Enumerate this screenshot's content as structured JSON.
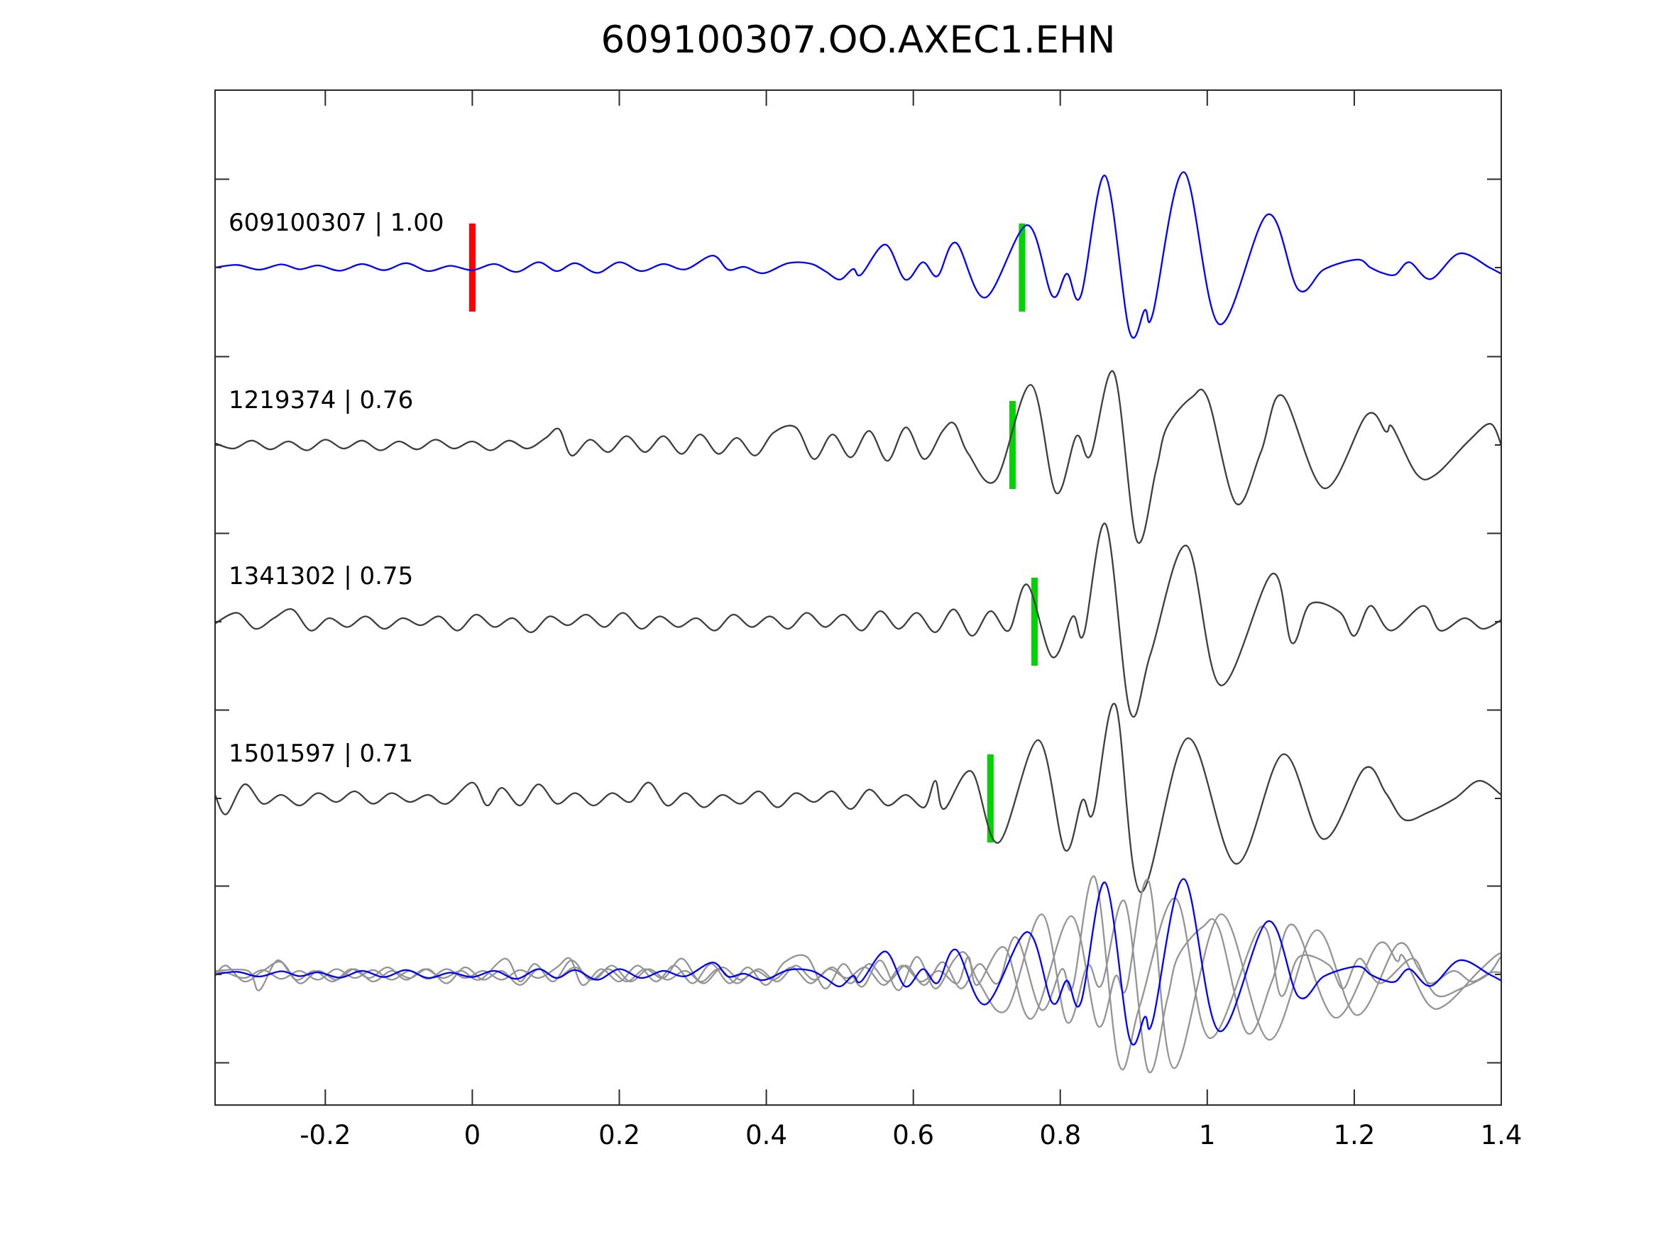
{
  "title": "609100307.OO.AXEC1.EHN",
  "colors": {
    "reference_trace": "#0000ff",
    "candidate_trace": "#3e3e3e",
    "overlay_gray": "#949494",
    "pick_marker_green": "#00d400",
    "pick_marker_red": "#ff0000",
    "spine": "#2b2b2b",
    "background": "#ffffff",
    "text": "#000000"
  },
  "chart_data": {
    "type": "line",
    "title": "609100307.OO.AXEC1.EHN",
    "xlabel": "",
    "ylabel": "",
    "x_range": [
      -0.35,
      1.4
    ],
    "x_ticks": [
      -0.2,
      0,
      0.2,
      0.4,
      0.6,
      0.8,
      1,
      1.2,
      1.4
    ],
    "x_tick_labels": [
      "-0.2",
      "0",
      "0.2",
      "0.4",
      "0.6",
      "0.8",
      "1",
      "1.2",
      "1.4"
    ],
    "grid": false,
    "legend": "none",
    "amplitude_units": "row-spacing normalized (1.0 = distance between stacked traces)",
    "traces": [
      {
        "id": "609100307",
        "correlation": "1.00",
        "label": "609100307 | 1.00",
        "color": "#0000ff",
        "row": 0,
        "markers": [
          {
            "x": 0.0,
            "color": "#ff0000",
            "kind": "reference-pick"
          },
          {
            "x": 0.748,
            "color": "#00d400",
            "kind": "pick"
          }
        ],
        "points": [
          [
            -0.35,
            0
          ],
          [
            -0.32,
            0.015
          ],
          [
            -0.29,
            -0.012
          ],
          [
            -0.26,
            0.018
          ],
          [
            -0.235,
            -0.01
          ],
          [
            -0.21,
            0.012
          ],
          [
            -0.18,
            -0.018
          ],
          [
            -0.15,
            0.02
          ],
          [
            -0.12,
            -0.015
          ],
          [
            -0.09,
            0.025
          ],
          [
            -0.06,
            -0.02
          ],
          [
            -0.03,
            0.01
          ],
          [
            0,
            -0.015
          ],
          [
            0.03,
            0.02
          ],
          [
            0.06,
            -0.025
          ],
          [
            0.09,
            0.03
          ],
          [
            0.115,
            -0.02
          ],
          [
            0.14,
            0.025
          ],
          [
            0.17,
            -0.03
          ],
          [
            0.2,
            0.03
          ],
          [
            0.23,
            -0.02
          ],
          [
            0.26,
            0.02
          ],
          [
            0.29,
            -0.01
          ],
          [
            0.327,
            0.068
          ],
          [
            0.348,
            -0.012
          ],
          [
            0.37,
            0.004
          ],
          [
            0.396,
            -0.032
          ],
          [
            0.43,
            0.025
          ],
          [
            0.46,
            0.022
          ],
          [
            0.48,
            -0.02
          ],
          [
            0.5,
            -0.068
          ],
          [
            0.518,
            -0.008
          ],
          [
            0.529,
            -0.04
          ],
          [
            0.562,
            0.13
          ],
          [
            0.589,
            -0.068
          ],
          [
            0.613,
            0.03
          ],
          [
            0.633,
            -0.048
          ],
          [
            0.658,
            0.14
          ],
          [
            0.698,
            -0.17
          ],
          [
            0.755,
            0.24
          ],
          [
            0.789,
            -0.16
          ],
          [
            0.809,
            -0.035
          ],
          [
            0.828,
            -0.16
          ],
          [
            0.861,
            0.52
          ],
          [
            0.894,
            -0.36
          ],
          [
            0.915,
            -0.24
          ],
          [
            0.926,
            -0.26
          ],
          [
            0.968,
            0.54
          ],
          [
            1.016,
            -0.32
          ],
          [
            1.082,
            0.3
          ],
          [
            1.124,
            -0.125
          ],
          [
            1.159,
            -0.01
          ],
          [
            1.204,
            0.045
          ],
          [
            1.222,
            0
          ],
          [
            1.238,
            -0.03
          ],
          [
            1.256,
            -0.04
          ],
          [
            1.275,
            0.03
          ],
          [
            1.304,
            -0.065
          ],
          [
            1.343,
            0.08
          ],
          [
            1.384,
            0
          ],
          [
            1.4,
            -0.035
          ]
        ]
      },
      {
        "id": "1219374",
        "correlation": "0.76",
        "label": "1219374 | 0.76",
        "color": "#3e3e3e",
        "row": 1,
        "markers": [
          {
            "x": 0.735,
            "color": "#00d400",
            "kind": "pick"
          }
        ],
        "points": [
          [
            -0.35,
            0.01
          ],
          [
            -0.325,
            -0.02
          ],
          [
            -0.3,
            0.025
          ],
          [
            -0.275,
            -0.025
          ],
          [
            -0.25,
            0.02
          ],
          [
            -0.225,
            -0.03
          ],
          [
            -0.2,
            0.03
          ],
          [
            -0.175,
            -0.02
          ],
          [
            -0.15,
            0.025
          ],
          [
            -0.125,
            -0.03
          ],
          [
            -0.1,
            0.02
          ],
          [
            -0.075,
            -0.025
          ],
          [
            -0.05,
            0.03
          ],
          [
            -0.025,
            -0.02
          ],
          [
            0,
            0.02
          ],
          [
            0.025,
            -0.03
          ],
          [
            0.05,
            0.025
          ],
          [
            0.075,
            -0.02
          ],
          [
            0.1,
            0.04
          ],
          [
            0.118,
            0.09
          ],
          [
            0.135,
            -0.06
          ],
          [
            0.16,
            0.03
          ],
          [
            0.185,
            -0.04
          ],
          [
            0.21,
            0.05
          ],
          [
            0.235,
            -0.04
          ],
          [
            0.26,
            0.05
          ],
          [
            0.285,
            -0.05
          ],
          [
            0.31,
            0.06
          ],
          [
            0.335,
            -0.05
          ],
          [
            0.36,
            0.04
          ],
          [
            0.385,
            -0.06
          ],
          [
            0.41,
            0.07
          ],
          [
            0.44,
            0.1
          ],
          [
            0.465,
            -0.08
          ],
          [
            0.49,
            0.06
          ],
          [
            0.515,
            -0.07
          ],
          [
            0.54,
            0.08
          ],
          [
            0.565,
            -0.09
          ],
          [
            0.59,
            0.1
          ],
          [
            0.615,
            -0.08
          ],
          [
            0.64,
            0.08
          ],
          [
            0.656,
            0.12
          ],
          [
            0.675,
            -0.05
          ],
          [
            0.712,
            -0.2
          ],
          [
            0.76,
            0.34
          ],
          [
            0.794,
            -0.27
          ],
          [
            0.822,
            0.05
          ],
          [
            0.841,
            -0.06
          ],
          [
            0.873,
            0.41
          ],
          [
            0.904,
            -0.54
          ],
          [
            0.93,
            -0.15
          ],
          [
            0.945,
            0.1
          ],
          [
            0.979,
            0.27
          ],
          [
            1.001,
            0.26
          ],
          [
            1.039,
            -0.33
          ],
          [
            1.073,
            -0.04
          ],
          [
            1.102,
            0.28
          ],
          [
            1.159,
            -0.245
          ],
          [
            1.217,
            0.17
          ],
          [
            1.243,
            0.076
          ],
          [
            1.252,
            0.1
          ],
          [
            1.285,
            -0.165
          ],
          [
            1.31,
            -0.17
          ],
          [
            1.355,
            0.02
          ],
          [
            1.385,
            0.12
          ],
          [
            1.4,
            0
          ]
        ]
      },
      {
        "id": "1341302",
        "correlation": "0.75",
        "label": "1341302 | 0.75",
        "color": "#3e3e3e",
        "row": 2,
        "markers": [
          {
            "x": 0.765,
            "color": "#00d400",
            "kind": "pick"
          }
        ],
        "points": [
          [
            -0.35,
            -0.01
          ],
          [
            -0.32,
            0.05
          ],
          [
            -0.295,
            -0.04
          ],
          [
            -0.27,
            0.02
          ],
          [
            -0.245,
            0.07
          ],
          [
            -0.22,
            -0.05
          ],
          [
            -0.195,
            0.02
          ],
          [
            -0.17,
            -0.03
          ],
          [
            -0.145,
            0.03
          ],
          [
            -0.12,
            -0.04
          ],
          [
            -0.095,
            0.02
          ],
          [
            -0.07,
            -0.02
          ],
          [
            -0.045,
            0.03
          ],
          [
            -0.02,
            -0.05
          ],
          [
            0.005,
            0.04
          ],
          [
            0.03,
            -0.03
          ],
          [
            0.055,
            0.02
          ],
          [
            0.08,
            -0.06
          ],
          [
            0.105,
            0.03
          ],
          [
            0.13,
            -0.02
          ],
          [
            0.155,
            0.04
          ],
          [
            0.18,
            -0.03
          ],
          [
            0.205,
            0.05
          ],
          [
            0.23,
            -0.04
          ],
          [
            0.255,
            0.03
          ],
          [
            0.28,
            -0.03
          ],
          [
            0.305,
            0.02
          ],
          [
            0.33,
            -0.05
          ],
          [
            0.355,
            0.04
          ],
          [
            0.38,
            -0.03
          ],
          [
            0.405,
            0.03
          ],
          [
            0.43,
            -0.04
          ],
          [
            0.455,
            0.05
          ],
          [
            0.48,
            -0.03
          ],
          [
            0.505,
            0.04
          ],
          [
            0.53,
            -0.05
          ],
          [
            0.555,
            0.06
          ],
          [
            0.58,
            -0.04
          ],
          [
            0.605,
            0.05
          ],
          [
            0.63,
            -0.06
          ],
          [
            0.655,
            0.07
          ],
          [
            0.68,
            -0.08
          ],
          [
            0.705,
            0.06
          ],
          [
            0.73,
            -0.05
          ],
          [
            0.755,
            0.21
          ],
          [
            0.789,
            -0.2
          ],
          [
            0.817,
            0.03
          ],
          [
            0.832,
            -0.07
          ],
          [
            0.862,
            0.55
          ],
          [
            0.895,
            -0.51
          ],
          [
            0.923,
            -0.18
          ],
          [
            0.972,
            0.43
          ],
          [
            1.018,
            -0.36
          ],
          [
            1.088,
            0.27
          ],
          [
            1.115,
            -0.12
          ],
          [
            1.14,
            0.1
          ],
          [
            1.18,
            0.055
          ],
          [
            1.2,
            -0.08
          ],
          [
            1.222,
            0.09
          ],
          [
            1.25,
            -0.05
          ],
          [
            1.294,
            0.09
          ],
          [
            1.317,
            -0.05
          ],
          [
            1.35,
            0.02
          ],
          [
            1.375,
            -0.04
          ],
          [
            1.4,
            0.01
          ]
        ]
      },
      {
        "id": "1501597",
        "correlation": "0.71",
        "label": "1501597 | 0.71",
        "color": "#3e3e3e",
        "row": 3,
        "markers": [
          {
            "x": 0.705,
            "color": "#00d400",
            "kind": "pick"
          }
        ],
        "points": [
          [
            -0.35,
            0.02
          ],
          [
            -0.335,
            -0.09
          ],
          [
            -0.31,
            0.08
          ],
          [
            -0.285,
            -0.03
          ],
          [
            -0.26,
            0.02
          ],
          [
            -0.235,
            -0.04
          ],
          [
            -0.21,
            0.03
          ],
          [
            -0.185,
            -0.02
          ],
          [
            -0.16,
            0.04
          ],
          [
            -0.135,
            -0.03
          ],
          [
            -0.11,
            0.03
          ],
          [
            -0.085,
            -0.02
          ],
          [
            -0.06,
            0.02
          ],
          [
            -0.035,
            -0.03
          ],
          [
            0,
            0.09
          ],
          [
            0.02,
            -0.04
          ],
          [
            0.04,
            0.06
          ],
          [
            0.065,
            -0.04
          ],
          [
            0.09,
            0.08
          ],
          [
            0.115,
            -0.03
          ],
          [
            0.14,
            0.03
          ],
          [
            0.165,
            -0.04
          ],
          [
            0.19,
            0.03
          ],
          [
            0.215,
            -0.02
          ],
          [
            0.24,
            0.09
          ],
          [
            0.265,
            -0.04
          ],
          [
            0.29,
            0.03
          ],
          [
            0.315,
            -0.05
          ],
          [
            0.34,
            0.02
          ],
          [
            0.365,
            -0.03
          ],
          [
            0.39,
            0.04
          ],
          [
            0.415,
            -0.05
          ],
          [
            0.44,
            0.03
          ],
          [
            0.465,
            -0.02
          ],
          [
            0.49,
            0.04
          ],
          [
            0.515,
            -0.06
          ],
          [
            0.54,
            0.05
          ],
          [
            0.565,
            -0.04
          ],
          [
            0.59,
            0.02
          ],
          [
            0.615,
            -0.05
          ],
          [
            0.63,
            0.1
          ],
          [
            0.642,
            -0.06
          ],
          [
            0.679,
            0.153
          ],
          [
            0.716,
            -0.25
          ],
          [
            0.77,
            0.33
          ],
          [
            0.806,
            -0.29
          ],
          [
            0.83,
            -0.01
          ],
          [
            0.845,
            -0.08
          ],
          [
            0.875,
            0.53
          ],
          [
            0.909,
            -0.53
          ],
          [
            0.973,
            0.34
          ],
          [
            1.039,
            -0.37
          ],
          [
            1.103,
            0.25
          ],
          [
            1.158,
            -0.23
          ],
          [
            1.214,
            0.17
          ],
          [
            1.243,
            0.03
          ],
          [
            1.268,
            -0.12
          ],
          [
            1.3,
            -0.08
          ],
          [
            1.337,
            0
          ],
          [
            1.37,
            0.1
          ],
          [
            1.4,
            0.02
          ]
        ]
      }
    ],
    "overlay_row": {
      "row": 4,
      "description": "all traces time-shifted to align picks and superimposed",
      "members": [
        {
          "ref": 1,
          "dx": 0.015,
          "color": "#949494"
        },
        {
          "ref": 2,
          "dx": -0.015,
          "color": "#949494"
        },
        {
          "ref": 3,
          "dx": 0.045,
          "color": "#949494"
        },
        {
          "ref": 0,
          "dx": 0,
          "color": "#0000ff"
        }
      ]
    }
  }
}
